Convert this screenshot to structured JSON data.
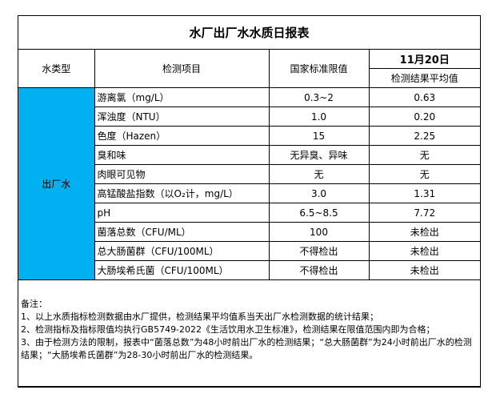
{
  "title": "水厂出厂水水质日报表",
  "headers": {
    "water_type": "水类型",
    "item": "检测项目",
    "limit": "国家标准限值",
    "date": "11月20日",
    "result": "检测结果平均值"
  },
  "water_type": "出厂水",
  "rows": [
    {
      "item": "游离氯（mg/L）",
      "limit": "0.3~2",
      "result": "0.63"
    },
    {
      "item": "浑浊度（NTU）",
      "limit": "1.0",
      "result": "0.20"
    },
    {
      "item": "色度（Hazen）",
      "limit": "15",
      "result": "2.25"
    },
    {
      "item": "臭和味",
      "limit": "无异臭、异味",
      "result": "无"
    },
    {
      "item": "肉眼可见物",
      "limit": "无",
      "result": "无"
    },
    {
      "item": "高锰酸盐指数（以O₂计，mg/L）",
      "limit": "3.0",
      "result": "1.31"
    },
    {
      "item": "pH",
      "limit": "6.5~8.5",
      "result": "7.72"
    },
    {
      "item": "菌落总数（CFU/ML）",
      "limit": "100",
      "result": "未检出"
    },
    {
      "item": "总大肠菌群（CFU/100ML）",
      "limit": "不得检出",
      "result": "未检出"
    },
    {
      "item": "大肠埃希氏菌（CFU/100ML）",
      "limit": "不得检出",
      "result": "未检出"
    }
  ],
  "notes": [
    "备注：",
    "1、以上水质指标检测数据由水厂提供，检测结果平均值系当天出厂水检测数据的统计结果；",
    "2、检测指标及指标限值均执行GB5749-2022《生活饮用水卫生标准》，检测结果在限值范围内即为合格；",
    "3、由于检测方法的限制，报表中“菌落总数”为48小时前出厂水的检测结果；“总大肠菌群”为24小时前出厂水的检测结果；“大肠埃希氏菌群”为28-30小时前出厂水的检测结果。"
  ],
  "colors": {
    "water_type_bg": "#00B0F0"
  }
}
